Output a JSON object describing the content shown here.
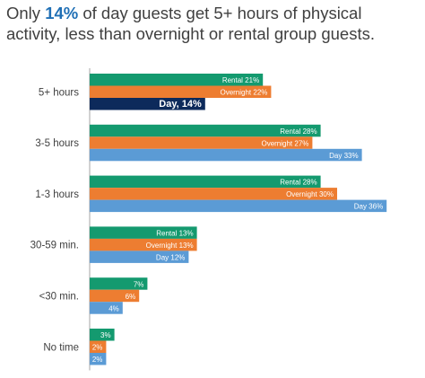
{
  "title": {
    "pre": "Only ",
    "highlight": "14%",
    "post": " of day guests get 5+ hours of physical activity, less than overnight or rental group guests."
  },
  "colors": {
    "rental": "#149a6f",
    "overnight": "#ed7d31",
    "day": "#5b9bd5",
    "day_highlight": "#0d2a5b",
    "axis": "#a6a6a6",
    "label": "#404040"
  },
  "chart_data": {
    "type": "bar",
    "orientation": "horizontal",
    "categories": [
      "5+ hours",
      "3-5 hours",
      "1-3 hours",
      "30-59 min.",
      "<30 min.",
      "No time"
    ],
    "series": [
      {
        "key": "rental",
        "values": [
          21,
          28,
          28,
          13,
          7,
          3
        ],
        "labels": [
          "Rental 21%",
          "Rental 28%",
          "Rental 28%",
          "Rental 13%",
          "7%",
          "3%"
        ]
      },
      {
        "key": "overnight",
        "values": [
          22,
          27,
          30,
          13,
          6,
          2
        ],
        "labels": [
          "Overnight 22%",
          "Overnight 27%",
          "Overnight 30%",
          "Overnight 13%",
          "6%",
          "2%"
        ]
      },
      {
        "key": "day",
        "values": [
          14,
          33,
          36,
          12,
          4,
          2
        ],
        "labels": [
          "Day, 14%",
          "Day 33%",
          "Day 36%",
          "Day 12%",
          "4%",
          "2%"
        ],
        "highlight_index": 0
      }
    ],
    "xlim": [
      0,
      36
    ],
    "grid": false,
    "legend": "none"
  }
}
